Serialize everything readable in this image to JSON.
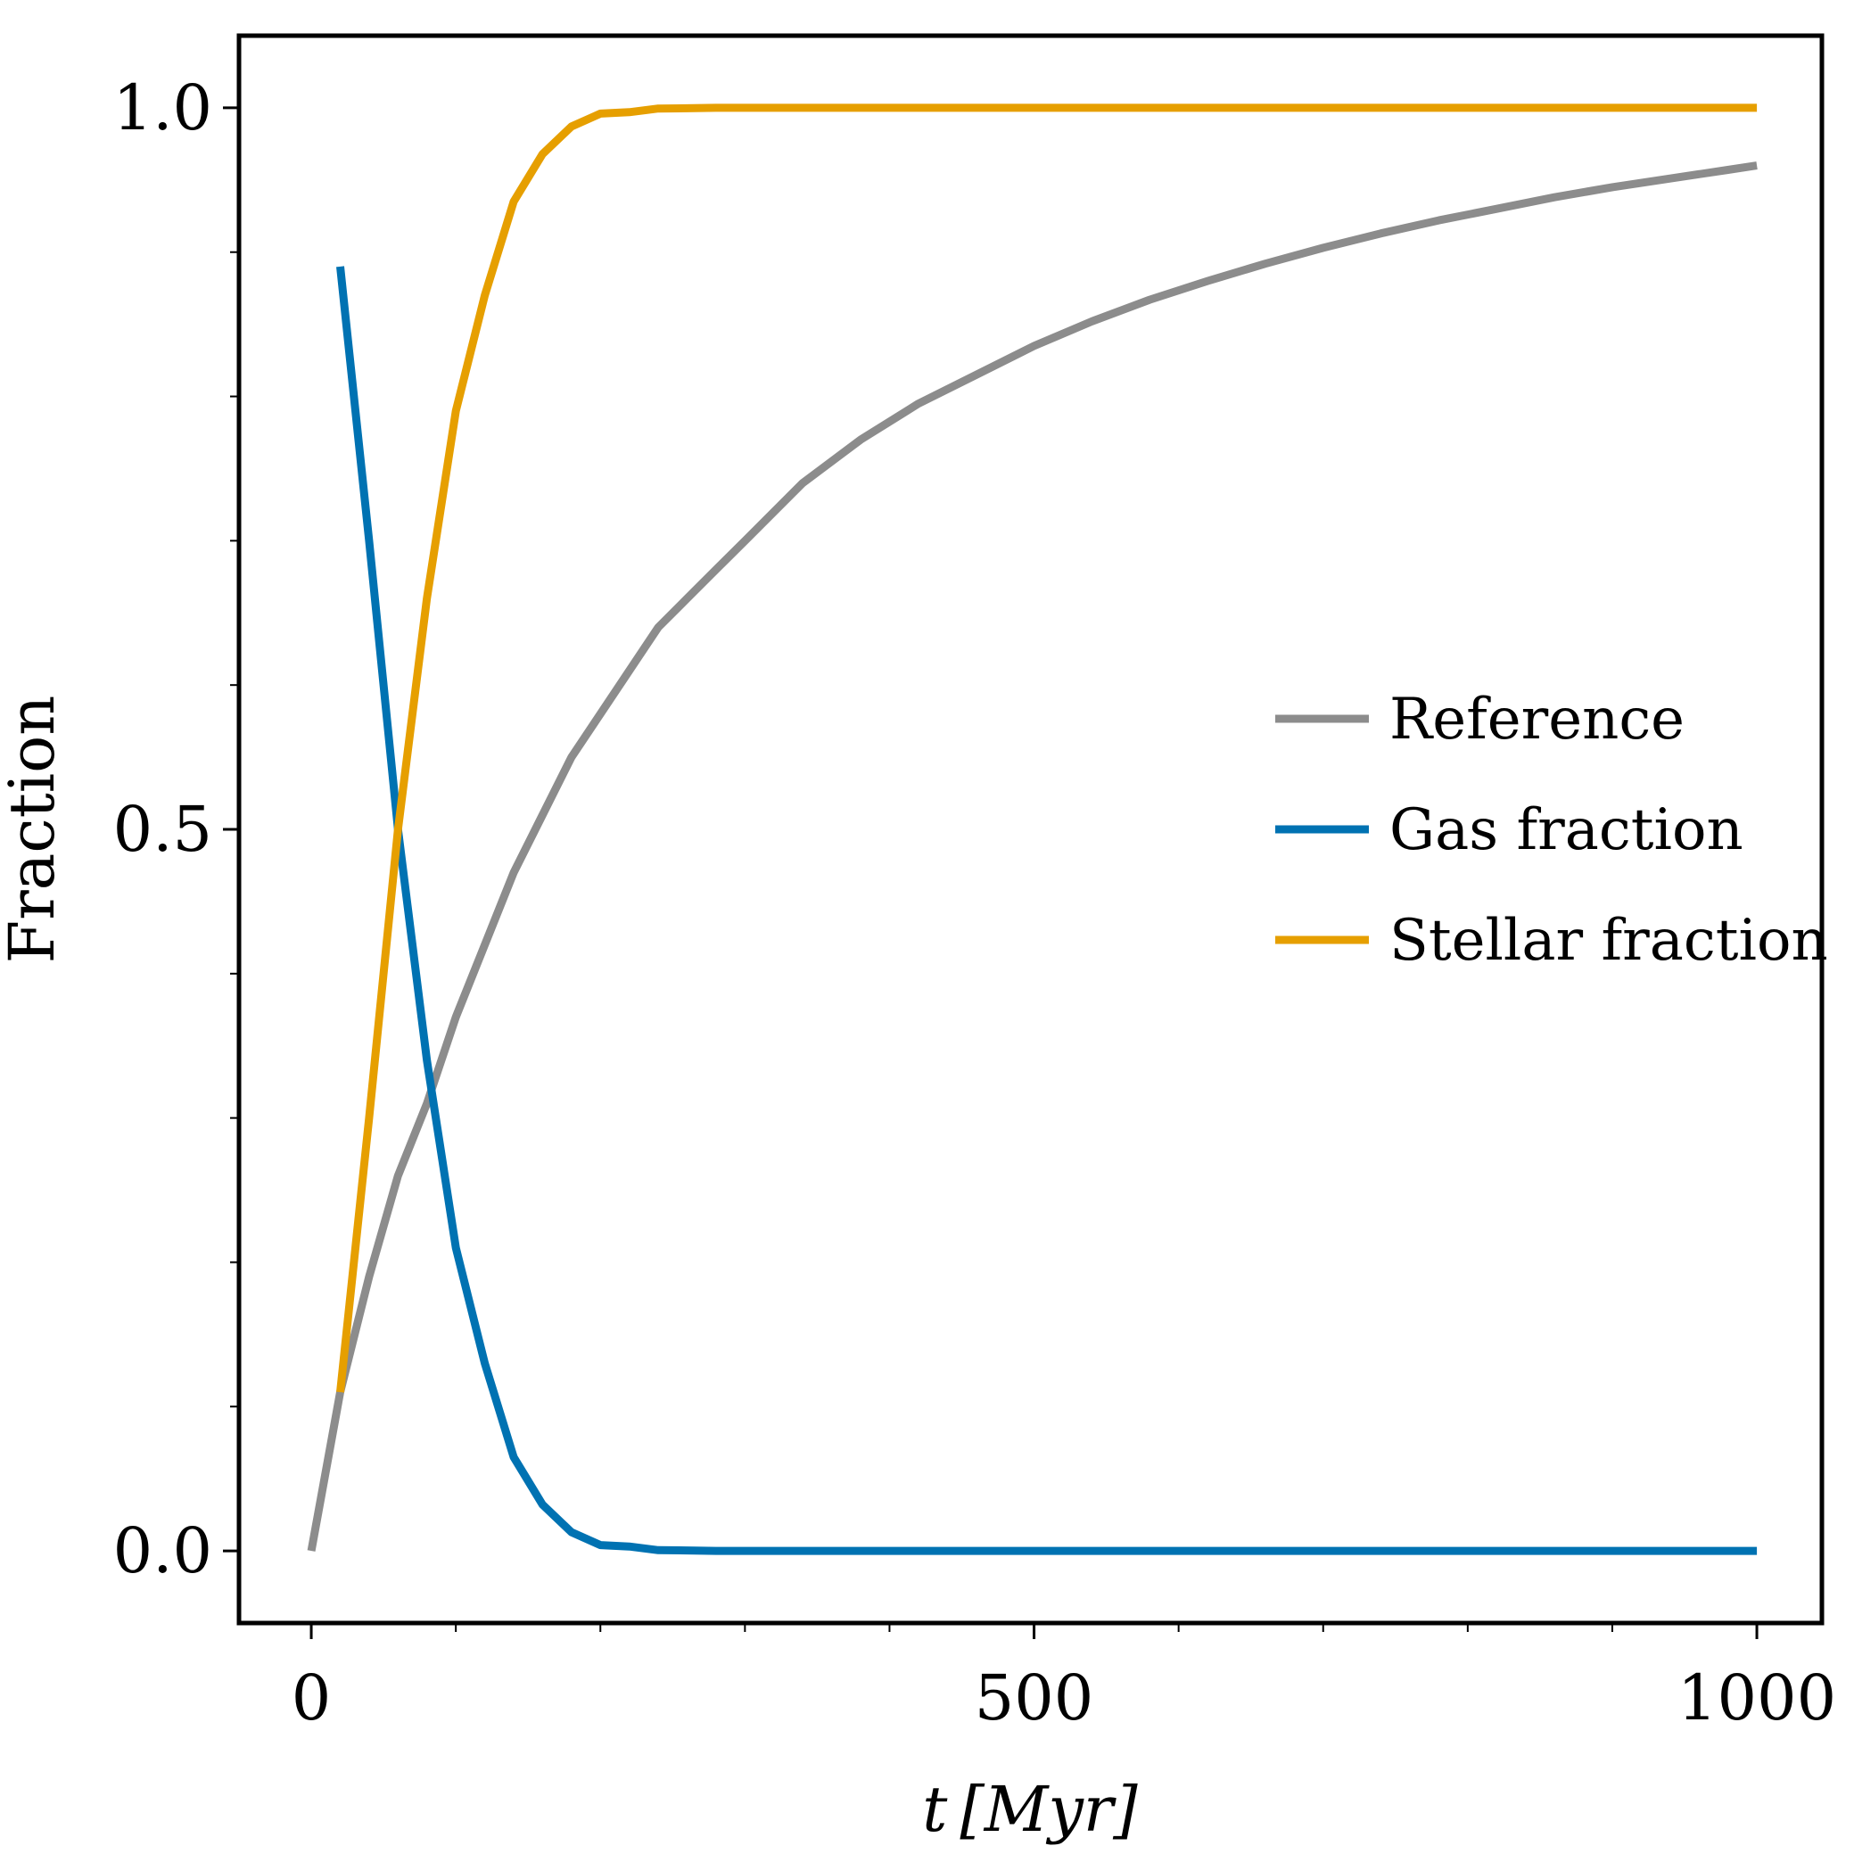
{
  "chart_data": {
    "type": "line",
    "xlabel": "t [Myr]",
    "ylabel": "Fraction",
    "xlim": [
      -50,
      1045
    ],
    "ylim": [
      -0.05,
      1.05
    ],
    "xticks": [
      0,
      500,
      1000
    ],
    "yticks": [
      0.0,
      0.5,
      1.0
    ],
    "xtick_labels": [
      "0",
      "500",
      "1000"
    ],
    "ytick_labels": [
      "0.0",
      "0.5",
      "1.0"
    ],
    "x_minor_ticks": [
      100,
      200,
      300,
      400,
      600,
      700,
      800,
      900
    ],
    "y_minor_ticks": [
      0.1,
      0.2,
      0.3,
      0.4,
      0.6,
      0.7,
      0.8,
      0.9
    ],
    "grid": false,
    "legend_position": "center-right",
    "series": [
      {
        "name": "Reference",
        "color": "#8c8c8c",
        "x": [
          0,
          20,
          40,
          60,
          80,
          100,
          120,
          140,
          160,
          180,
          200,
          220,
          240,
          260,
          280,
          300,
          340,
          380,
          420,
          460,
          500,
          540,
          580,
          620,
          660,
          700,
          740,
          780,
          820,
          860,
          900,
          940,
          980,
          1000
        ],
        "y": [
          0.0,
          0.11,
          0.19,
          0.26,
          0.31,
          0.37,
          0.42,
          0.47,
          0.51,
          0.55,
          0.58,
          0.61,
          0.64,
          0.66,
          0.68,
          0.7,
          0.74,
          0.77,
          0.795,
          0.815,
          0.835,
          0.852,
          0.867,
          0.88,
          0.892,
          0.903,
          0.913,
          0.922,
          0.93,
          0.938,
          0.945,
          0.951,
          0.957,
          0.96
        ]
      },
      {
        "name": "Gas fraction",
        "color": "#0072b2",
        "x": [
          20,
          40,
          60,
          80,
          100,
          120,
          140,
          160,
          180,
          200,
          220,
          240,
          260,
          280,
          300,
          400,
          500,
          600,
          700,
          800,
          900,
          1000
        ],
        "y": [
          0.89,
          0.7,
          0.5,
          0.34,
          0.21,
          0.13,
          0.065,
          0.032,
          0.013,
          0.004,
          0.003,
          0.0005,
          0.0003,
          0.0,
          0.0,
          0.0,
          0.0,
          0.0,
          0.0,
          0.0,
          0.0,
          0.0
        ]
      },
      {
        "name": "Stellar fraction",
        "color": "#e69f00",
        "x": [
          20,
          40,
          60,
          80,
          100,
          120,
          140,
          160,
          180,
          200,
          220,
          240,
          260,
          280,
          300,
          400,
          500,
          600,
          700,
          800,
          900,
          1000
        ],
        "y": [
          0.11,
          0.3,
          0.5,
          0.66,
          0.79,
          0.87,
          0.935,
          0.968,
          0.987,
          0.996,
          0.997,
          0.9995,
          0.9997,
          1.0,
          1.0,
          1.0,
          1.0,
          1.0,
          1.0,
          1.0,
          1.0,
          1.0
        ]
      }
    ]
  }
}
